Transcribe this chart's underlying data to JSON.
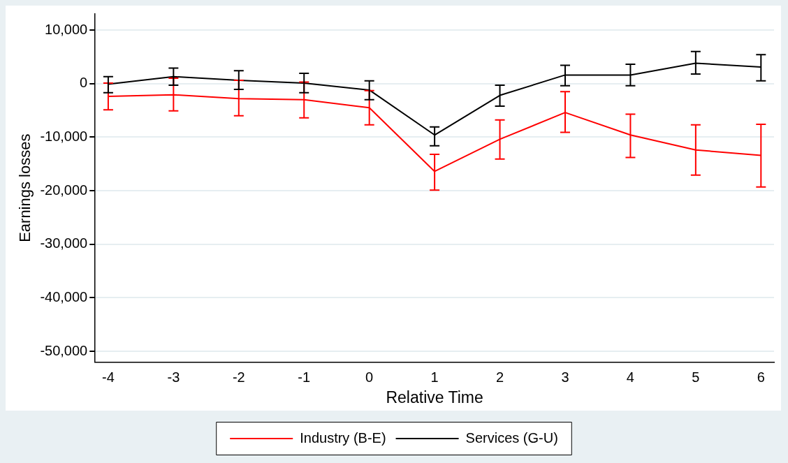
{
  "chart_data": {
    "type": "line",
    "xlabel": "Relative Time",
    "ylabel": "Earnings losses",
    "x": [
      -4,
      -3,
      -2,
      -1,
      0,
      1,
      2,
      3,
      4,
      5,
      6
    ],
    "xlim": [
      -4.2,
      6.2
    ],
    "xticks": [
      -4,
      -3,
      -2,
      -1,
      0,
      1,
      2,
      3,
      4,
      5,
      6
    ],
    "ylim": [
      -52000,
      13000
    ],
    "yticks": [
      {
        "value": 10000,
        "label": "10,000"
      },
      {
        "value": 0,
        "label": "0"
      },
      {
        "value": -10000,
        "label": "-10,000"
      },
      {
        "value": -20000,
        "label": "-20,000"
      },
      {
        "value": -30000,
        "label": "-30,000"
      },
      {
        "value": -40000,
        "label": "-40,000"
      },
      {
        "value": -50000,
        "label": "-50,000"
      }
    ],
    "grid": "y",
    "legend": "bottom",
    "marker": "none",
    "line_style": "solid",
    "series": [
      {
        "name": "Industry (B-E)",
        "color": "#ff0000",
        "values": [
          -2400,
          -2100,
          -2800,
          -3000,
          -4500,
          -16400,
          -10400,
          -5400,
          -9600,
          -12400,
          -13400
        ],
        "errors": [
          [
            -4900,
            100
          ],
          [
            -5100,
            1000
          ],
          [
            -6000,
            600
          ],
          [
            -6400,
            300
          ],
          [
            -7700,
            -1300
          ],
          [
            -19900,
            -13200
          ],
          [
            -14100,
            -6800
          ],
          [
            -9100,
            -1500
          ],
          [
            -13800,
            -5700
          ],
          [
            -17100,
            -7700
          ],
          [
            -19300,
            -7600
          ]
        ]
      },
      {
        "name": "Services (G-U)",
        "color": "#000000",
        "values": [
          -100,
          1300,
          600,
          100,
          -1200,
          -9600,
          -2200,
          1600,
          1600,
          3800,
          3100
        ],
        "errors": [
          [
            -1700,
            1300
          ],
          [
            -300,
            2900
          ],
          [
            -1100,
            2400
          ],
          [
            -1700,
            1900
          ],
          [
            -3000,
            500
          ],
          [
            -11600,
            -8100
          ],
          [
            -4200,
            -300
          ],
          [
            -400,
            3400
          ],
          [
            -400,
            3600
          ],
          [
            1800,
            6000
          ],
          [
            500,
            5400
          ]
        ]
      }
    ]
  }
}
